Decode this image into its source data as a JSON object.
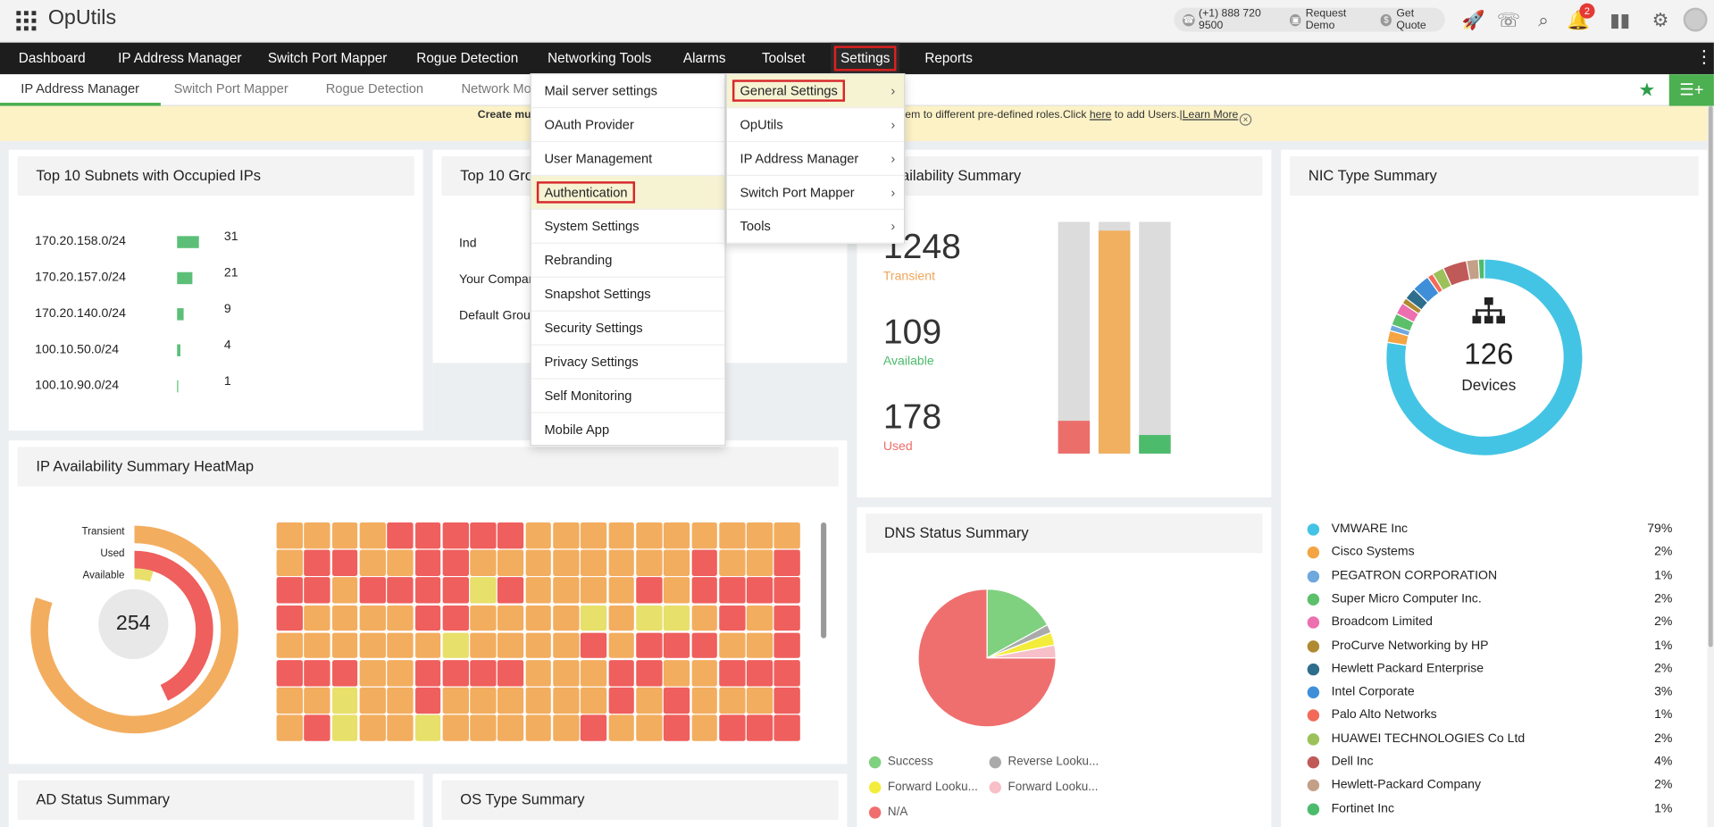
{
  "header": {
    "app_name": "OpUtils",
    "phone": "(+1) 888 720 9500",
    "request_demo": "Request Demo",
    "get_quote": "Get Quote",
    "notification_count": "2"
  },
  "nav": {
    "items": [
      "Dashboard",
      "IP Address Manager",
      "Switch Port Mapper",
      "Rogue Detection",
      "Networking Tools",
      "Alarms",
      "Toolset",
      "Settings",
      "Reports"
    ],
    "active": "Settings"
  },
  "subnav": {
    "items": [
      "IP Address Manager",
      "Switch Port Mapper",
      "Rogue Detection",
      "Network Mo"
    ],
    "active": "IP Address Manager"
  },
  "banner": {
    "prefix": "Create mul",
    "suffix": "em to different pre-defined roles.Click",
    "link_here": "here",
    "middle": "to add Users.|",
    "learn_more": "Learn More"
  },
  "settings_menu": {
    "items": [
      "Mail server settings",
      "OAuth Provider",
      "User Management",
      "Authentication",
      "System Settings",
      "Rebranding",
      "Snapshot Settings",
      "Security Settings",
      "Privacy Settings",
      "Self Monitoring",
      "Mobile App"
    ],
    "highlighted": "Authentication"
  },
  "general_submenu": {
    "items": [
      "General Settings",
      "OpUtils",
      "IP Address Manager",
      "Switch Port Mapper",
      "Tools"
    ],
    "highlighted": "General Settings"
  },
  "top_subnets": {
    "title": "Top 10 Subnets with Occupied IPs",
    "rows": [
      {
        "subnet": "170.20.158.0/24",
        "count": "31",
        "value": 31
      },
      {
        "subnet": "170.20.157.0/24",
        "count": "21",
        "value": 21
      },
      {
        "subnet": "170.20.140.0/24",
        "count": "9",
        "value": 9
      },
      {
        "subnet": "100.10.50.0/24",
        "count": "4",
        "value": 4
      },
      {
        "subnet": "100.10.90.0/24",
        "count": "1",
        "value": 1
      }
    ]
  },
  "top_groups": {
    "title": "Top 10 Gro",
    "rows": [
      "Ind",
      "Your Compar",
      "Default Grou"
    ]
  },
  "ip_availability": {
    "title": "Availability Summary",
    "transient_value": "1248",
    "transient_label": "Transient",
    "available_value": "109",
    "available_label": "Available",
    "used_value": "178",
    "used_label": "Used",
    "bars": [
      {
        "fill": 0.14,
        "color": "#ec6e6a"
      },
      {
        "fill": 0.96,
        "color": "#f0b060"
      },
      {
        "fill": 0.08,
        "color": "#4cbb6c"
      }
    ]
  },
  "nic": {
    "title": "NIC Type Summary",
    "center_value": "126",
    "center_label": "Devices",
    "items": [
      {
        "name": "VMWARE Inc",
        "pct": "79%",
        "color": "#44c4e4"
      },
      {
        "name": "Cisco Systems",
        "pct": "2%",
        "color": "#f4a442"
      },
      {
        "name": "PEGATRON CORPORATION",
        "pct": "1%",
        "color": "#6fa8dc"
      },
      {
        "name": "Super Micro Computer Inc.",
        "pct": "2%",
        "color": "#5cbf6a"
      },
      {
        "name": "Broadcom Limited",
        "pct": "2%",
        "color": "#ec6fb0"
      },
      {
        "name": "ProCurve Networking by HP",
        "pct": "1%",
        "color": "#b08a30"
      },
      {
        "name": "Hewlett Packard Enterprise",
        "pct": "2%",
        "color": "#2f6d8c"
      },
      {
        "name": "Intel Corporate",
        "pct": "3%",
        "color": "#3f8fd8"
      },
      {
        "name": "Palo Alto Networks",
        "pct": "1%",
        "color": "#f36a5a"
      },
      {
        "name": "HUAWEI TECHNOLOGIES Co Ltd",
        "pct": "2%",
        "color": "#9cc15a"
      },
      {
        "name": "Dell Inc",
        "pct": "4%",
        "color": "#c05a58"
      },
      {
        "name": "Hewlett-Packard Company",
        "pct": "2%",
        "color": "#c4a088"
      },
      {
        "name": "Fortinet Inc",
        "pct": "1%",
        "color": "#4cbb6c"
      }
    ]
  },
  "heatmap": {
    "title": "IP Availability Summary HeatMap",
    "total": "254",
    "legend": [
      "Transient",
      "Used",
      "Available"
    ],
    "rings": [
      {
        "name": "Transient",
        "fill": 0.8,
        "color": "#f3ad5f"
      },
      {
        "name": "Used",
        "fill": 0.43,
        "color": "#ee5f5d"
      },
      {
        "name": "Available",
        "fill": 0.05,
        "color": "#e8e06a"
      }
    ],
    "grid": [
      "OOOORRRRROOOOOOOOOO",
      "ORROORROOOOOOOOROOR",
      "RRORRRRYROOOORORRRR",
      "ROOOORROOOOYOYYOROR",
      "OOOOOOYOOOORORRROOR",
      "RRROORRRROOORROORRR",
      "OOYOOROOOOOOROROOOR",
      "ORYOOYOOOOOROORORRR"
    ]
  },
  "dns": {
    "title": "DNS Status Summary",
    "legend": [
      "Success",
      "Reverse Looku...",
      "Forward Looku...",
      "Forward Looku...",
      "N/A"
    ],
    "slices": [
      {
        "name": "Success",
        "value": 17,
        "color": "#7fd07f"
      },
      {
        "name": "Reverse Looku...",
        "value": 2,
        "color": "#aaaaaa"
      },
      {
        "name": "Forward Looku...",
        "value": 3,
        "color": "#f4ec3a"
      },
      {
        "name": "Forward Looku...",
        "value": 3,
        "color": "#f7bfc8"
      },
      {
        "name": "N/A",
        "value": 75,
        "color": "#ef6f6f"
      }
    ]
  },
  "ad_status": {
    "title": "AD Status Summary"
  },
  "os_type": {
    "title": "OS Type Summary"
  }
}
